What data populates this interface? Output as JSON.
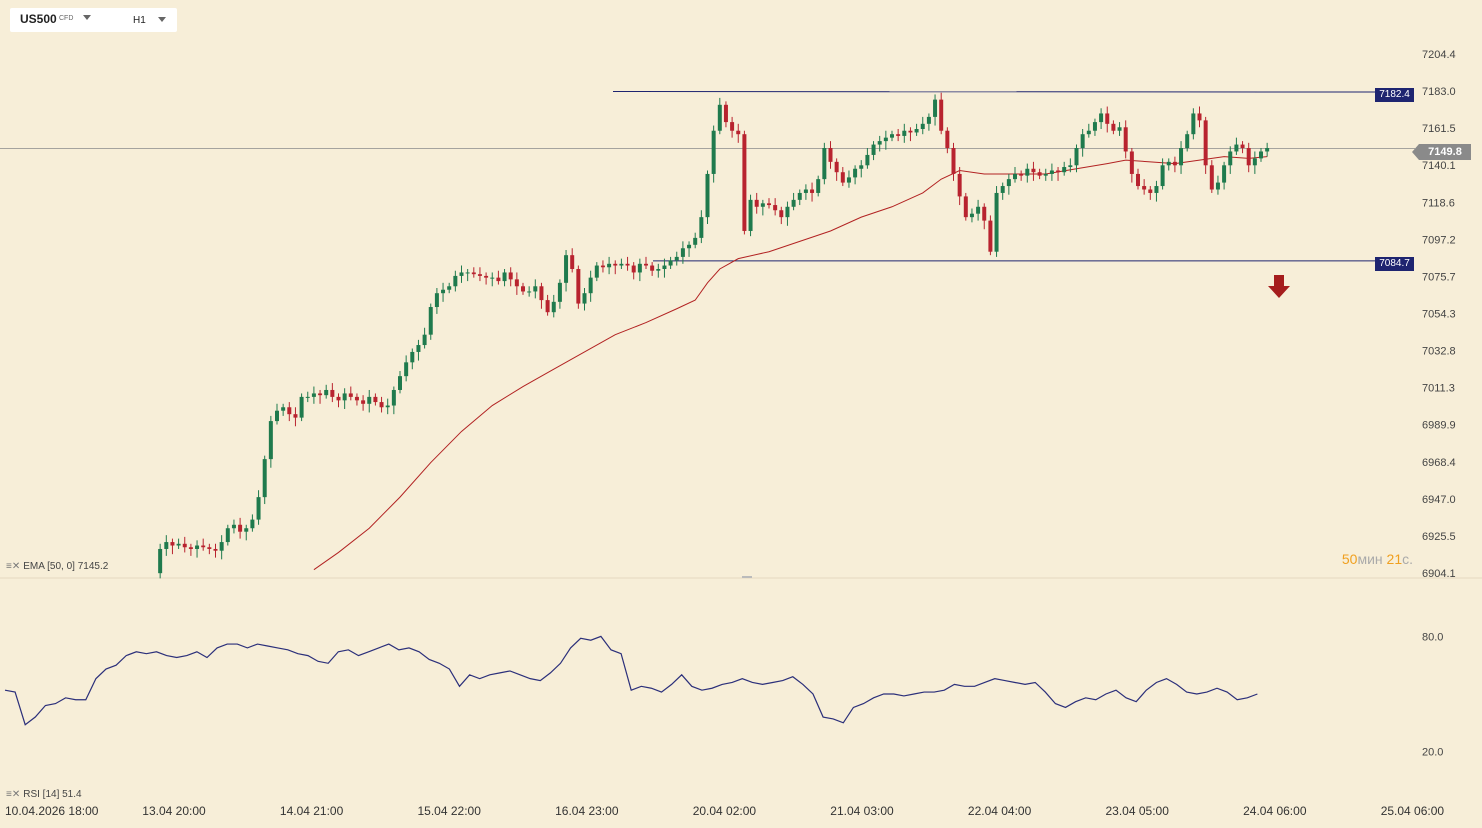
{
  "header": {
    "symbol": "US500",
    "symbol_type": "CFD",
    "timeframe": "H1"
  },
  "indicators": {
    "ema_label": "EMA [50, 0] 7145.2",
    "rsi_label": "RSI [14] 51.4"
  },
  "timer": {
    "value_min": "50",
    "unit_min": "мин",
    "value_sec": "21",
    "unit_sec": "с."
  },
  "current_price": "7149.8",
  "levels": {
    "resistance": "7182.4",
    "support": "7084.7"
  },
  "colors": {
    "background": "#f7eed8",
    "bull": "#1f7a4d",
    "bear": "#b8232f",
    "ema": "#b22222",
    "rsi": "#2b2f7a",
    "level_line": "#1e2470",
    "arrow": "#a51d1d"
  },
  "chart_data": [
    {
      "type": "candlestick",
      "y_axis_ticks": [
        "7204.4",
        "7183.0",
        "7161.5",
        "7140.1",
        "7118.6",
        "7097.2",
        "7075.7",
        "7054.3",
        "7032.8",
        "7011.3",
        "6989.9",
        "6968.4",
        "6947.0",
        "6925.5",
        "6904.1"
      ],
      "ylim": [
        6904.1,
        7204.4
      ],
      "x_axis_ticks": [
        "10.04.2026 18:00",
        "13.04 20:00",
        "14.04 21:00",
        "15.04 22:00",
        "16.04 23:00",
        "20.04 02:00",
        "21.04 03:00",
        "22.04 04:00",
        "23.04 05:00",
        "24.04 06:00",
        "25.04 06:00"
      ],
      "horizontal_levels": [
        7182.4,
        7084.7
      ],
      "current_price": 7149.8,
      "ema_last": 7145.2,
      "close_path": [
        [
          0,
          6904
        ],
        [
          1,
          6918
        ],
        [
          2,
          6922
        ],
        [
          3,
          6920
        ],
        [
          4,
          6921
        ],
        [
          5,
          6919
        ],
        [
          6,
          6918
        ],
        [
          7,
          6920
        ],
        [
          8,
          6919
        ],
        [
          9,
          6918
        ],
        [
          10,
          6917
        ],
        [
          11,
          6922
        ],
        [
          12,
          6930
        ],
        [
          13,
          6932
        ],
        [
          14,
          6928
        ],
        [
          15,
          6930
        ],
        [
          16,
          6935
        ],
        [
          17,
          6948
        ],
        [
          18,
          6970
        ],
        [
          19,
          6992
        ],
        [
          20,
          6998
        ],
        [
          21,
          7000
        ],
        [
          22,
          6996
        ],
        [
          23,
          6994
        ],
        [
          24,
          7006
        ],
        [
          25,
          7006
        ],
        [
          26,
          7008
        ],
        [
          27,
          7007
        ],
        [
          28,
          7010
        ],
        [
          29,
          7006
        ],
        [
          30,
          7004
        ],
        [
          31,
          7008
        ],
        [
          32,
          7006
        ],
        [
          33,
          7004
        ],
        [
          34,
          7002
        ],
        [
          35,
          7006
        ],
        [
          36,
          7003
        ],
        [
          37,
          7000
        ],
        [
          38,
          7001
        ],
        [
          39,
          7010
        ],
        [
          40,
          7018
        ],
        [
          41,
          7026
        ],
        [
          42,
          7032
        ],
        [
          43,
          7036
        ],
        [
          44,
          7042
        ],
        [
          45,
          7058
        ],
        [
          46,
          7066
        ],
        [
          47,
          7068
        ],
        [
          48,
          7070
        ],
        [
          49,
          7076
        ],
        [
          50,
          7078
        ],
        [
          51,
          7078
        ],
        [
          52,
          7077
        ],
        [
          53,
          7076
        ],
        [
          54,
          7075
        ],
        [
          55,
          7075
        ],
        [
          56,
          7073
        ],
        [
          57,
          7078
        ],
        [
          58,
          7074
        ],
        [
          59,
          7070
        ],
        [
          60,
          7067
        ],
        [
          61,
          7067
        ],
        [
          62,
          7070
        ],
        [
          63,
          7062
        ],
        [
          64,
          7055
        ],
        [
          65,
          7061
        ],
        [
          66,
          7072
        ],
        [
          67,
          7088
        ],
        [
          68,
          7080
        ],
        [
          69,
          7060
        ],
        [
          70,
          7066
        ],
        [
          71,
          7075
        ],
        [
          72,
          7082
        ],
        [
          73,
          7081
        ],
        [
          74,
          7083
        ],
        [
          75,
          7082
        ],
        [
          76,
          7083
        ],
        [
          77,
          7082
        ],
        [
          78,
          7078
        ],
        [
          79,
          7083
        ],
        [
          80,
          7082
        ],
        [
          81,
          7079
        ],
        [
          82,
          7080
        ],
        [
          83,
          7082
        ],
        [
          84,
          7085
        ],
        [
          85,
          7087
        ],
        [
          86,
          7092
        ],
        [
          87,
          7094
        ],
        [
          88,
          7098
        ],
        [
          89,
          7110
        ],
        [
          90,
          7135
        ],
        [
          91,
          7160
        ],
        [
          92,
          7175
        ],
        [
          93,
          7165
        ],
        [
          94,
          7160
        ],
        [
          95,
          7158
        ],
        [
          96,
          7102
        ],
        [
          97,
          7120
        ],
        [
          98,
          7116
        ],
        [
          99,
          7118
        ],
        [
          100,
          7117
        ],
        [
          101,
          7114
        ],
        [
          102,
          7110
        ],
        [
          103,
          7116
        ],
        [
          104,
          7120
        ],
        [
          105,
          7124
        ],
        [
          106,
          7126
        ],
        [
          107,
          7124
        ],
        [
          108,
          7132
        ],
        [
          109,
          7150
        ],
        [
          110,
          7142
        ],
        [
          111,
          7136
        ],
        [
          112,
          7130
        ],
        [
          113,
          7133
        ],
        [
          114,
          7138
        ],
        [
          115,
          7140
        ],
        [
          116,
          7146
        ],
        [
          117,
          7152
        ],
        [
          118,
          7154
        ],
        [
          119,
          7156
        ],
        [
          120,
          7158
        ],
        [
          121,
          7157
        ],
        [
          122,
          7160
        ],
        [
          123,
          7159
        ],
        [
          124,
          7161
        ],
        [
          125,
          7164
        ],
        [
          126,
          7168
        ],
        [
          127,
          7178
        ],
        [
          128,
          7160
        ],
        [
          129,
          7150
        ],
        [
          130,
          7135
        ],
        [
          131,
          7122
        ],
        [
          132,
          7110
        ],
        [
          133,
          7112
        ],
        [
          134,
          7116
        ],
        [
          135,
          7108
        ],
        [
          136,
          7090
        ],
        [
          137,
          7124
        ],
        [
          138,
          7128
        ],
        [
          139,
          7132
        ],
        [
          140,
          7135
        ],
        [
          141,
          7134
        ],
        [
          142,
          7138
        ],
        [
          143,
          7136
        ],
        [
          144,
          7134
        ],
        [
          145,
          7135
        ],
        [
          146,
          7137
        ],
        [
          147,
          7136
        ],
        [
          148,
          7139
        ],
        [
          149,
          7140
        ],
        [
          150,
          7150
        ],
        [
          151,
          7158
        ],
        [
          152,
          7160
        ],
        [
          153,
          7165
        ],
        [
          154,
          7170
        ],
        [
          155,
          7164
        ],
        [
          156,
          7160
        ],
        [
          157,
          7162
        ],
        [
          158,
          7148
        ],
        [
          159,
          7135
        ],
        [
          160,
          7128
        ],
        [
          161,
          7126
        ],
        [
          162,
          7124
        ],
        [
          163,
          7128
        ],
        [
          164,
          7140
        ],
        [
          165,
          7142
        ],
        [
          166,
          7140
        ],
        [
          167,
          7150
        ],
        [
          168,
          7158
        ],
        [
          169,
          7170
        ],
        [
          170,
          7166
        ],
        [
          171,
          7140
        ],
        [
          172,
          7126
        ],
        [
          173,
          7130
        ],
        [
          174,
          7140
        ],
        [
          175,
          7148
        ],
        [
          176,
          7152
        ],
        [
          177,
          7150
        ],
        [
          178,
          7140
        ],
        [
          179,
          7144
        ],
        [
          180,
          7148
        ],
        [
          181,
          7150
        ]
      ],
      "ema_path": [
        [
          26,
          6906
        ],
        [
          30,
          6916
        ],
        [
          35,
          6930
        ],
        [
          40,
          6948
        ],
        [
          45,
          6968
        ],
        [
          50,
          6986
        ],
        [
          55,
          7001
        ],
        [
          60,
          7012
        ],
        [
          65,
          7022
        ],
        [
          70,
          7032
        ],
        [
          75,
          7042
        ],
        [
          80,
          7049
        ],
        [
          85,
          7057
        ],
        [
          88,
          7062
        ],
        [
          90,
          7072
        ],
        [
          92,
          7080
        ],
        [
          95,
          7086
        ],
        [
          100,
          7090
        ],
        [
          105,
          7096
        ],
        [
          110,
          7102
        ],
        [
          115,
          7110
        ],
        [
          120,
          7116
        ],
        [
          125,
          7124
        ],
        [
          128,
          7132
        ],
        [
          131,
          7137
        ],
        [
          135,
          7135
        ],
        [
          140,
          7135
        ],
        [
          145,
          7135
        ],
        [
          150,
          7138
        ],
        [
          155,
          7141
        ],
        [
          158,
          7143
        ],
        [
          162,
          7142
        ],
        [
          166,
          7141
        ],
        [
          170,
          7143
        ],
        [
          174,
          7145
        ],
        [
          178,
          7144
        ],
        [
          181,
          7145
        ]
      ]
    },
    {
      "type": "line",
      "series": [
        {
          "name": "RSI [14]"
        }
      ],
      "y_axis_ticks": [
        "80.0",
        "20.0"
      ],
      "ylim": [
        0,
        100
      ],
      "last_value": 51.4,
      "values": [
        [
          0,
          52
        ],
        [
          1,
          51
        ],
        [
          2,
          34
        ],
        [
          3,
          38
        ],
        [
          4,
          44
        ],
        [
          5,
          45
        ],
        [
          6,
          48
        ],
        [
          7,
          47
        ],
        [
          8,
          47
        ],
        [
          9,
          58
        ],
        [
          10,
          63
        ],
        [
          11,
          65
        ],
        [
          12,
          70
        ],
        [
          13,
          72
        ],
        [
          14,
          71
        ],
        [
          15,
          72
        ],
        [
          16,
          70
        ],
        [
          17,
          69
        ],
        [
          18,
          70
        ],
        [
          19,
          72
        ],
        [
          20,
          69
        ],
        [
          21,
          74
        ],
        [
          22,
          76
        ],
        [
          23,
          76
        ],
        [
          24,
          74
        ],
        [
          25,
          76
        ],
        [
          26,
          75
        ],
        [
          27,
          74
        ],
        [
          28,
          73
        ],
        [
          29,
          71
        ],
        [
          30,
          70
        ],
        [
          31,
          67
        ],
        [
          32,
          66
        ],
        [
          33,
          72
        ],
        [
          34,
          73
        ],
        [
          35,
          70
        ],
        [
          36,
          72
        ],
        [
          37,
          74
        ],
        [
          38,
          76
        ],
        [
          39,
          73
        ],
        [
          40,
          74
        ],
        [
          41,
          72
        ],
        [
          42,
          68
        ],
        [
          43,
          66
        ],
        [
          44,
          63
        ],
        [
          45,
          54
        ],
        [
          46,
          60
        ],
        [
          47,
          58
        ],
        [
          48,
          60
        ],
        [
          49,
          61
        ],
        [
          50,
          62
        ],
        [
          51,
          60
        ],
        [
          52,
          58
        ],
        [
          53,
          57
        ],
        [
          54,
          61
        ],
        [
          55,
          66
        ],
        [
          56,
          74
        ],
        [
          57,
          79
        ],
        [
          58,
          78
        ],
        [
          59,
          80
        ],
        [
          60,
          73
        ],
        [
          61,
          71
        ],
        [
          62,
          52
        ],
        [
          63,
          54
        ],
        [
          64,
          53
        ],
        [
          65,
          51
        ],
        [
          66,
          55
        ],
        [
          67,
          60
        ],
        [
          68,
          54
        ],
        [
          69,
          52
        ],
        [
          70,
          53
        ],
        [
          71,
          55
        ],
        [
          72,
          56
        ],
        [
          73,
          58
        ],
        [
          74,
          56
        ],
        [
          75,
          55
        ],
        [
          76,
          56
        ],
        [
          77,
          57
        ],
        [
          78,
          59
        ],
        [
          79,
          55
        ],
        [
          80,
          50
        ],
        [
          81,
          38
        ],
        [
          82,
          37
        ],
        [
          83,
          35
        ],
        [
          84,
          43
        ],
        [
          85,
          45
        ],
        [
          86,
          48
        ],
        [
          87,
          50
        ],
        [
          88,
          50
        ],
        [
          89,
          49
        ],
        [
          90,
          50
        ],
        [
          91,
          51
        ],
        [
          92,
          51
        ],
        [
          93,
          52
        ],
        [
          94,
          55
        ],
        [
          95,
          54
        ],
        [
          96,
          54
        ],
        [
          97,
          56
        ],
        [
          98,
          58
        ],
        [
          99,
          57
        ],
        [
          100,
          56
        ],
        [
          101,
          55
        ],
        [
          102,
          56
        ],
        [
          103,
          51
        ],
        [
          104,
          45
        ],
        [
          105,
          43
        ],
        [
          106,
          46
        ],
        [
          107,
          48
        ],
        [
          108,
          47
        ],
        [
          109,
          50
        ],
        [
          110,
          52
        ],
        [
          111,
          48
        ],
        [
          112,
          46
        ],
        [
          113,
          52
        ],
        [
          114,
          56
        ],
        [
          115,
          58
        ],
        [
          116,
          55
        ],
        [
          117,
          51
        ],
        [
          118,
          50
        ],
        [
          119,
          51
        ],
        [
          120,
          53
        ],
        [
          121,
          51
        ],
        [
          122,
          47
        ],
        [
          123,
          48
        ],
        [
          124,
          50
        ]
      ]
    }
  ]
}
